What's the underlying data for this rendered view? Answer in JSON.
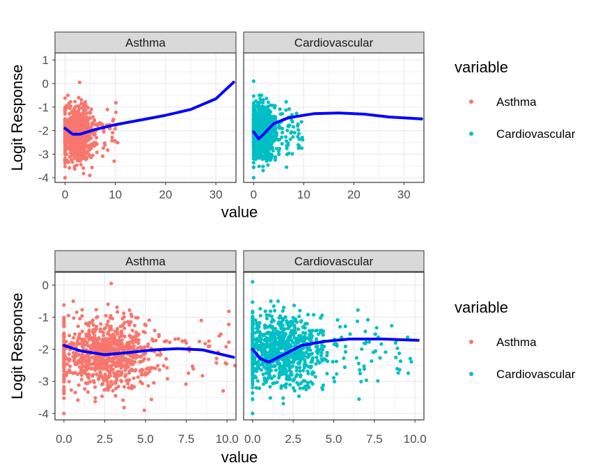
{
  "colors": {
    "asthma": "#F8766D",
    "cardiovascular": "#00BFC4",
    "smooth": "#0000FF",
    "strip_fill": "#D9D9D9",
    "grid_major": "#EBEBEB",
    "panel_border": "#333333"
  },
  "chart_data": [
    {
      "type": "scatter",
      "facets": [
        "Asthma",
        "Cardiovascular"
      ],
      "xlabel": "value",
      "ylabel": "Logit Response",
      "xlim": [
        -2,
        34
      ],
      "ylim": [
        -4.2,
        1.3
      ],
      "xticks": [
        0,
        10,
        20,
        30
      ],
      "xtick_labels": [
        "0",
        "10",
        "20",
        "30"
      ],
      "yticks": [
        1,
        0,
        -1,
        -2,
        -3,
        -4
      ],
      "ytick_labels": [
        "1",
        "0",
        "-1",
        "-2",
        "-3",
        "-4"
      ],
      "grid": true,
      "legend": {
        "title": "variable",
        "entries": [
          "Asthma",
          "Cardiovascular"
        ],
        "position": "right"
      },
      "series": [
        {
          "name": "Asthma",
          "x_range": [
            0,
            10.5
          ],
          "x_center": 2.5,
          "y_center": -2.15,
          "y_range": [
            -4,
            0.05
          ]
        },
        {
          "name": "Cardiovascular",
          "x_range": [
            0,
            10.3
          ],
          "x_center": 1.8,
          "y_center": -2.0,
          "y_range": [
            -4,
            0.1
          ]
        }
      ],
      "outliers": {
        "Asthma": [
          [
            33.5,
            0.05
          ]
        ],
        "Cardiovascular": [
          [
            33.5,
            -1.5
          ]
        ]
      },
      "smooth": {
        "Asthma": [
          [
            0,
            -1.9
          ],
          [
            1.5,
            -2.15
          ],
          [
            3,
            -2.15
          ],
          [
            6,
            -1.95
          ],
          [
            10,
            -1.75
          ],
          [
            15,
            -1.55
          ],
          [
            20,
            -1.35
          ],
          [
            25,
            -1.1
          ],
          [
            30,
            -0.65
          ],
          [
            33.5,
            0.05
          ]
        ],
        "Cardiovascular": [
          [
            0,
            -2.05
          ],
          [
            1,
            -2.35
          ],
          [
            2,
            -2.15
          ],
          [
            4,
            -1.7
          ],
          [
            7,
            -1.45
          ],
          [
            12,
            -1.28
          ],
          [
            17,
            -1.25
          ],
          [
            22,
            -1.3
          ],
          [
            27,
            -1.42
          ],
          [
            33.5,
            -1.5
          ]
        ]
      }
    },
    {
      "type": "scatter",
      "facets": [
        "Asthma",
        "Cardiovascular"
      ],
      "xlabel": "value",
      "ylabel": "Logit Response",
      "xlim": [
        -0.55,
        10.55
      ],
      "ylim": [
        -4.2,
        0.4
      ],
      "xticks": [
        0,
        2.5,
        5,
        7.5,
        10
      ],
      "xtick_labels": [
        "0.0",
        "2.5",
        "5.0",
        "7.5",
        "10.0"
      ],
      "yticks": [
        0,
        -1,
        -2,
        -3,
        -4
      ],
      "ytick_labels": [
        "0",
        "-1",
        "-2",
        "-3",
        "-4"
      ],
      "grid": true,
      "legend": {
        "title": "variable",
        "entries": [
          "Asthma",
          "Cardiovascular"
        ],
        "position": "right"
      },
      "series": [
        {
          "name": "Asthma",
          "x_range": [
            0,
            10.5
          ],
          "x_center": 2.5,
          "y_center": -2.15,
          "y_range": [
            -4,
            0.05
          ]
        },
        {
          "name": "Cardiovascular",
          "x_range": [
            0,
            10.3
          ],
          "x_center": 1.8,
          "y_center": -2.0,
          "y_range": [
            -4,
            0.1
          ]
        }
      ],
      "smooth": {
        "Asthma": [
          [
            0,
            -1.88
          ],
          [
            1,
            -2.05
          ],
          [
            2.5,
            -2.17
          ],
          [
            4,
            -2.1
          ],
          [
            5.5,
            -2.02
          ],
          [
            7,
            -1.98
          ],
          [
            8.5,
            -2.02
          ],
          [
            10.4,
            -2.25
          ]
        ],
        "Cardiovascular": [
          [
            0,
            -2.0
          ],
          [
            0.5,
            -2.3
          ],
          [
            1,
            -2.4
          ],
          [
            2,
            -2.15
          ],
          [
            3,
            -1.88
          ],
          [
            4.5,
            -1.75
          ],
          [
            6,
            -1.68
          ],
          [
            8,
            -1.68
          ],
          [
            10.2,
            -1.72
          ]
        ]
      }
    }
  ]
}
